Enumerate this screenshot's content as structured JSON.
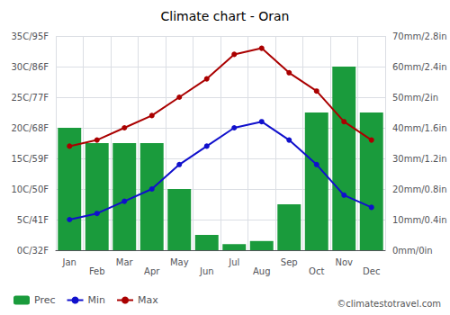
{
  "chart_data": {
    "type": "bar",
    "title": "Climate chart - Oran",
    "annotations": [
      "©climatestotravel.com"
    ],
    "categories": [
      "Jan",
      "Feb",
      "Mar",
      "Apr",
      "May",
      "Jun",
      "Jul",
      "Aug",
      "Sep",
      "Oct",
      "Nov",
      "Dec"
    ],
    "series": [
      {
        "name": "Prec",
        "type": "bar",
        "axis": "y2",
        "color": "#1a9b3c",
        "values": [
          40,
          35,
          35,
          35,
          20,
          5,
          2,
          3,
          15,
          45,
          60,
          45
        ]
      },
      {
        "name": "Min",
        "type": "line",
        "color": "#1010cc",
        "marker": "circle",
        "values": [
          5,
          6,
          8,
          10,
          14,
          17,
          20,
          21,
          18,
          14,
          9,
          7
        ]
      },
      {
        "name": "Max",
        "type": "line",
        "color": "#aa0000",
        "marker": "circle",
        "values": [
          17,
          18,
          20,
          22,
          25,
          28,
          32,
          33,
          29,
          26,
          21,
          18
        ]
      }
    ],
    "ylim": [
      0,
      35
    ],
    "yticks": [
      {
        "value": 0,
        "label": "0C/32F"
      },
      {
        "value": 5,
        "label": "5C/41F"
      },
      {
        "value": 10,
        "label": "10C/50F"
      },
      {
        "value": 15,
        "label": "15C/59F"
      },
      {
        "value": 20,
        "label": "20C/68F"
      },
      {
        "value": 25,
        "label": "25C/77F"
      },
      {
        "value": 30,
        "label": "30C/86F"
      },
      {
        "value": 35,
        "label": "35C/95F"
      }
    ],
    "y2lim": [
      0,
      70
    ],
    "y2ticks": [
      {
        "value": 0,
        "label": "0mm/0in"
      },
      {
        "value": 10,
        "label": "10mm/0.4in"
      },
      {
        "value": 20,
        "label": "20mm/0.8in"
      },
      {
        "value": 30,
        "label": "30mm/1.2in"
      },
      {
        "value": 40,
        "label": "40mm/1.6in"
      },
      {
        "value": 50,
        "label": "50mm/2in"
      },
      {
        "value": 60,
        "label": "60mm/2.4in"
      },
      {
        "value": 70,
        "label": "70mm/2.8in"
      }
    ],
    "grid": true,
    "legend": "bottom left"
  }
}
